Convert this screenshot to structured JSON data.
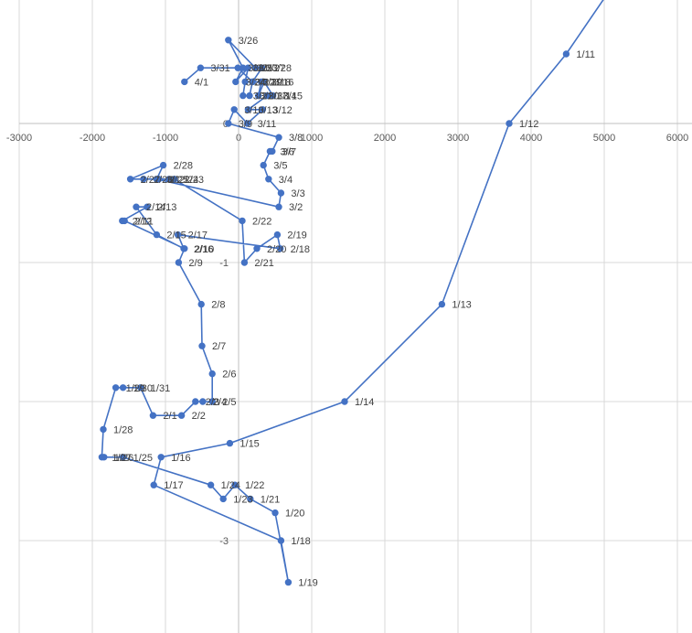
{
  "chart_data": {
    "type": "scatter",
    "title": "",
    "xlabel": "",
    "ylabel": "",
    "xlim": [
      -3000,
      6000
    ],
    "ylim": [
      -3.65,
      0.85
    ],
    "x_ticks": [
      -3000,
      -2000,
      -1000,
      0,
      1000,
      2000,
      3000,
      4000,
      5000,
      6000
    ],
    "y_ticks": [
      0,
      -1,
      -3
    ],
    "grid": {
      "vertical": true,
      "horizontal": true
    },
    "legend": "none",
    "series_color": "#4472c4",
    "points": [
      {
        "label": "",
        "x": 5000,
        "y": 0.9
      },
      {
        "label": "1/11",
        "x": 4480,
        "y": 0.5
      },
      {
        "label": "1/12",
        "x": 3700,
        "y": 0.0
      },
      {
        "label": "1/13",
        "x": 2780,
        "y": -1.3
      },
      {
        "label": "1/14",
        "x": 1450,
        "y": -2.0
      },
      {
        "label": "1/15",
        "x": -120,
        "y": -2.3
      },
      {
        "label": "1/16",
        "x": -1060,
        "y": -2.4
      },
      {
        "label": "1/17",
        "x": -1160,
        "y": -2.6
      },
      {
        "label": "1/18",
        "x": 580,
        "y": -3.0
      },
      {
        "label": "1/19",
        "x": 680,
        "y": -3.3
      },
      {
        "label": "1/20",
        "x": 500,
        "y": -2.8
      },
      {
        "label": "1/21",
        "x": 160,
        "y": -2.7
      },
      {
        "label": "1/22",
        "x": -50,
        "y": -2.6
      },
      {
        "label": "1/23",
        "x": -210,
        "y": -2.7
      },
      {
        "label": "1/24",
        "x": -380,
        "y": -2.6
      },
      {
        "label": "1/25",
        "x": -1580,
        "y": -2.4
      },
      {
        "label": "1/26",
        "x": -1840,
        "y": -2.4
      },
      {
        "label": "1/27",
        "x": -1870,
        "y": -2.4
      },
      {
        "label": "1/28",
        "x": -1850,
        "y": -2.2
      },
      {
        "label": "1/29",
        "x": -1680,
        "y": -1.9
      },
      {
        "label": "1/30",
        "x": -1580,
        "y": -1.9
      },
      {
        "label": "1/31",
        "x": -1340,
        "y": -1.9
      },
      {
        "label": "2/1",
        "x": -1170,
        "y": -2.1
      },
      {
        "label": "2/2",
        "x": -780,
        "y": -2.1
      },
      {
        "label": "2/3",
        "x": -590,
        "y": -2.0
      },
      {
        "label": "2/4",
        "x": -490,
        "y": -2.0
      },
      {
        "label": "2/5",
        "x": -360,
        "y": -2.0
      },
      {
        "label": "2/6",
        "x": -360,
        "y": -1.8
      },
      {
        "label": "2/7",
        "x": -500,
        "y": -1.6
      },
      {
        "label": "2/8",
        "x": -510,
        "y": -1.3
      },
      {
        "label": "2/9",
        "x": -820,
        "y": -1.0
      },
      {
        "label": "2/10",
        "x": -740,
        "y": -0.9
      },
      {
        "label": "2/11",
        "x": -1560,
        "y": -0.7
      },
      {
        "label": "2/12",
        "x": -1590,
        "y": -0.7
      },
      {
        "label": "2/13",
        "x": -1250,
        "y": -0.6
      },
      {
        "label": "2/14",
        "x": -1400,
        "y": -0.6
      },
      {
        "label": "2/15",
        "x": -1120,
        "y": -0.8
      },
      {
        "label": "2/16",
        "x": -750,
        "y": -0.9
      },
      {
        "label": "2/17",
        "x": -830,
        "y": -0.8
      },
      {
        "label": "2/18",
        "x": 570,
        "y": -0.9
      },
      {
        "label": "2/19",
        "x": 530,
        "y": -0.8
      },
      {
        "label": "2/20",
        "x": 250,
        "y": -0.9
      },
      {
        "label": "2/21",
        "x": 80,
        "y": -1.0
      },
      {
        "label": "2/22",
        "x": 50,
        "y": -0.7
      },
      {
        "label": "2/23",
        "x": -880,
        "y": -0.4
      },
      {
        "label": "2/24",
        "x": -950,
        "y": -0.4
      },
      {
        "label": "2/25",
        "x": -1090,
        "y": -0.4
      },
      {
        "label": "2/26",
        "x": -1300,
        "y": -0.4
      },
      {
        "label": "2/27",
        "x": -1480,
        "y": -0.4
      },
      {
        "label": "2/28",
        "x": -1030,
        "y": -0.3
      },
      {
        "label": "3/1",
        "x": -1120,
        "y": -0.4
      },
      {
        "label": "3/2",
        "x": 550,
        "y": -0.6
      },
      {
        "label": "3/3",
        "x": 580,
        "y": -0.5
      },
      {
        "label": "3/4",
        "x": 410,
        "y": -0.4
      },
      {
        "label": "3/5",
        "x": 340,
        "y": -0.3
      },
      {
        "label": "3/6",
        "x": 430,
        "y": -0.2
      },
      {
        "label": "3/7",
        "x": 460,
        "y": -0.2
      },
      {
        "label": "3/8",
        "x": 550,
        "y": -0.1
      },
      {
        "label": "3/9",
        "x": -140,
        "y": 0.0
      },
      {
        "label": "3/10",
        "x": -60,
        "y": 0.1
      },
      {
        "label": "3/11",
        "x": 120,
        "y": 0.0
      },
      {
        "label": "3/12",
        "x": 330,
        "y": 0.1
      },
      {
        "label": "3/13",
        "x": 130,
        "y": 0.1
      },
      {
        "label": "3/14",
        "x": 390,
        "y": 0.2
      },
      {
        "label": "3/15",
        "x": 470,
        "y": 0.2
      },
      {
        "label": "3/16",
        "x": 350,
        "y": 0.3
      },
      {
        "label": "3/17",
        "x": 270,
        "y": 0.2
      },
      {
        "label": "3/18",
        "x": 310,
        "y": 0.3
      },
      {
        "label": "3/19",
        "x": 190,
        "y": 0.3
      },
      {
        "label": "3/20",
        "x": 150,
        "y": 0.2
      },
      {
        "label": "3/21",
        "x": 60,
        "y": 0.2
      },
      {
        "label": "3/22",
        "x": 90,
        "y": 0.3
      },
      {
        "label": "3/23",
        "x": 130,
        "y": 0.4
      },
      {
        "label": "3/24",
        "x": -40,
        "y": 0.3
      },
      {
        "label": "3/25",
        "x": 60,
        "y": 0.4
      },
      {
        "label": "3/26",
        "x": -140,
        "y": 0.6
      },
      {
        "label": "3/27",
        "x": 230,
        "y": 0.4
      },
      {
        "label": "3/28",
        "x": 320,
        "y": 0.4
      },
      {
        "label": "3/29",
        "x": 190,
        "y": 0.3
      },
      {
        "label": "3/30",
        "x": -10,
        "y": 0.4
      },
      {
        "label": "3/31",
        "x": -520,
        "y": 0.4
      },
      {
        "label": "4/1",
        "x": -740,
        "y": 0.3
      }
    ]
  }
}
